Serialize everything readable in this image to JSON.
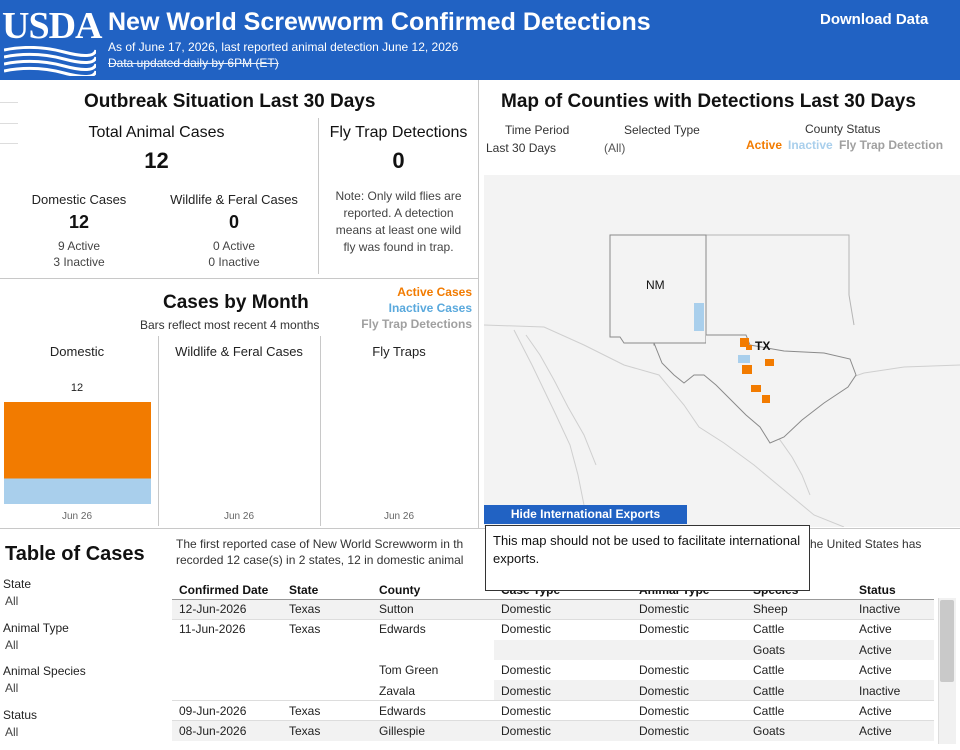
{
  "header": {
    "logo_text": "USDA",
    "title": "New World Screwworm Confirmed Detections",
    "subtitle1": "As of June 17, 2026, last reported animal detection June 12, 2026",
    "subtitle2": "Data updated daily by 6PM (ET)",
    "download_label": "Download Data"
  },
  "situation": {
    "title": "Outbreak Situation Last 30 Days",
    "total_label": "Total Animal Cases",
    "total_value": "12",
    "fly_label": "Fly Trap Detections",
    "fly_value": "0",
    "fly_note": [
      "Note: Only wild flies are",
      "reported. A detection",
      "means at least one wild",
      "fly was found in trap."
    ],
    "domestic_label": "Domestic Cases",
    "domestic_value": "12",
    "domestic_active": "9 Active",
    "domestic_inactive": "3 Inactive",
    "wildlife_label": "Wildlife & Feral Cases",
    "wildlife_value": "0",
    "wildlife_active": "0 Active",
    "wildlife_inactive": "0 Inactive"
  },
  "by_month": {
    "title": "Cases by Month",
    "subtitle": "Bars reflect most recent 4 months",
    "legend": [
      "Active Cases",
      "Inactive Cases",
      "Fly Trap Detections"
    ],
    "panels": [
      "Domestic",
      "Wildlife & Feral Cases",
      "Fly Traps"
    ],
    "bar_total_label": "12",
    "x_labels": [
      "Jun 26",
      "Jun 26",
      "Jun 26"
    ]
  },
  "chart_data": {
    "type": "bar",
    "categories": [
      "Jun 26"
    ],
    "series": [
      {
        "name": "Active Cases",
        "values": [
          9
        ]
      },
      {
        "name": "Inactive Cases",
        "values": [
          3
        ]
      }
    ],
    "ylim": [
      0,
      12
    ]
  },
  "map": {
    "title": "Map of Counties with Detections Last 30 Days",
    "time_period_label": "Time Period",
    "time_period_value": "Last 30 Days",
    "selected_type_label": "Selected Type",
    "selected_type_value": "(All)",
    "county_status_label": "County Status",
    "status_active": "Active",
    "status_inactive": "Inactive",
    "status_fly": "Fly Trap Detection",
    "state_nm": "NM",
    "state_tx": "TX",
    "hide_button": "Hide International Exports",
    "tooltip": "This map should not be used to facilitate international exports."
  },
  "cases_table": {
    "title": "Table of Cases",
    "intro_left": "The first reported case of New World Screwworm in th",
    "intro_right": "he United States has",
    "intro_line2": "recorded 12 case(s) in 2 states, 12 in domestic animal",
    "filters": [
      {
        "label": "State",
        "value": "All"
      },
      {
        "label": "Animal Type",
        "value": "All"
      },
      {
        "label": "Animal Species",
        "value": "All"
      },
      {
        "label": "Status",
        "value": "All"
      }
    ],
    "columns": [
      "Confirmed Date",
      "State",
      "County",
      "Case Type",
      "Animal Type",
      "Species",
      "Status"
    ],
    "rows": [
      [
        "12-Jun-2026",
        "Texas",
        "Sutton",
        "Domestic",
        "Domestic",
        "Sheep",
        "Inactive"
      ],
      [
        "11-Jun-2026",
        "Texas",
        "Edwards",
        "Domestic",
        "Domestic",
        "Cattle",
        "Active"
      ],
      [
        "",
        "",
        "",
        "",
        "",
        "Goats",
        "Active"
      ],
      [
        "",
        "",
        "Tom Green",
        "Domestic",
        "Domestic",
        "Cattle",
        "Active"
      ],
      [
        "",
        "",
        "Zavala",
        "Domestic",
        "Domestic",
        "Cattle",
        "Inactive"
      ],
      [
        "09-Jun-2026",
        "Texas",
        "Edwards",
        "Domestic",
        "Domestic",
        "Cattle",
        "Active"
      ],
      [
        "08-Jun-2026",
        "Texas",
        "Gillespie",
        "Domestic",
        "Domestic",
        "Goats",
        "Active"
      ]
    ]
  },
  "colors": {
    "header_blue": "#2162c3",
    "active_orange": "#f27b00",
    "inactive_blue": "#a9cfec",
    "fly_gray": "#a0a0a0"
  }
}
